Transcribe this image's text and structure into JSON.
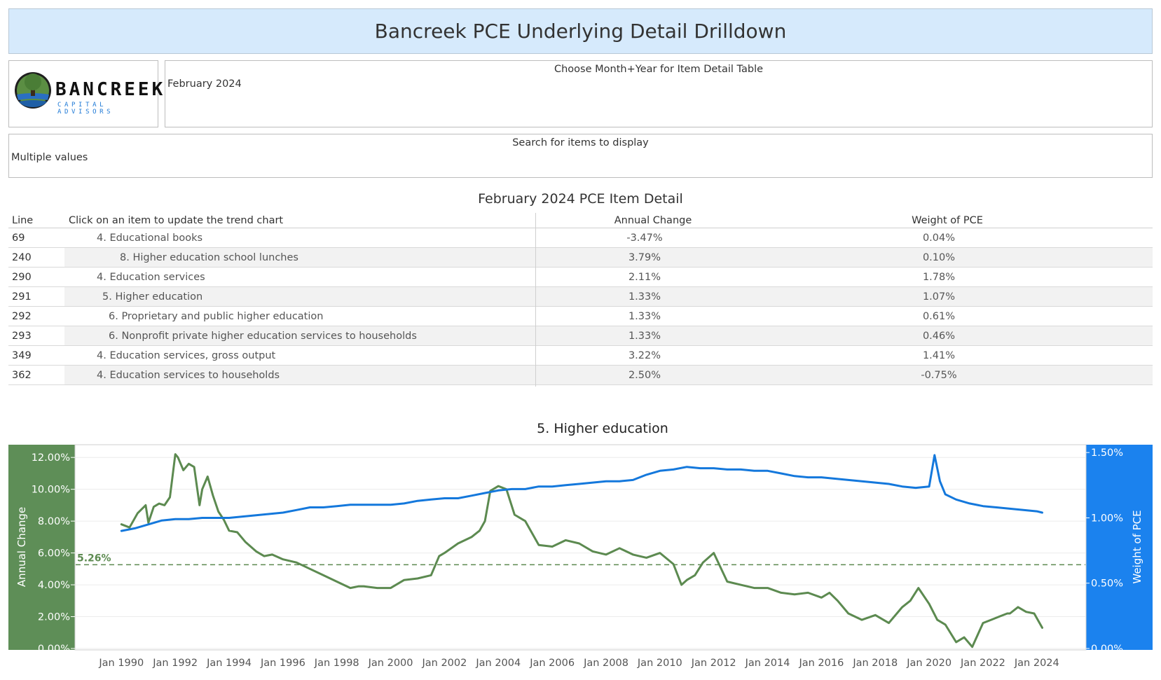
{
  "header": {
    "title": "Bancreek PCE Underlying Detail Drilldown"
  },
  "logo": {
    "name": "BANCREEK",
    "tagline": "CAPITAL ADVISORS"
  },
  "month_filter": {
    "label": "Choose Month+Year for Item Detail Table",
    "value": "February 2024"
  },
  "search_filter": {
    "label": "Search for items to display",
    "value": "Multiple values"
  },
  "table": {
    "title": "February 2024 PCE Item Detail",
    "columns": {
      "line": "Line",
      "item": "Click on an item to update the trend chart",
      "annual": "Annual Change",
      "weight": "Weight of PCE"
    },
    "rows": [
      {
        "line": "69",
        "item": "4. Educational books",
        "annual": "-3.47%",
        "weight": "0.04%",
        "level": 4
      },
      {
        "line": "240",
        "item": "8. Higher education school lunches",
        "annual": "3.79%",
        "weight": "0.10%",
        "level": 8
      },
      {
        "line": "290",
        "item": "4. Education services",
        "annual": "2.11%",
        "weight": "1.78%",
        "level": 4
      },
      {
        "line": "291",
        "item": "5. Higher education",
        "annual": "1.33%",
        "weight": "1.07%",
        "level": 5
      },
      {
        "line": "292",
        "item": "6. Proprietary and public higher education",
        "annual": "1.33%",
        "weight": "0.61%",
        "level": 6
      },
      {
        "line": "293",
        "item": "6. Nonprofit private higher education services to households",
        "annual": "1.33%",
        "weight": "0.46%",
        "level": 6
      },
      {
        "line": "349",
        "item": "4. Education services, gross output",
        "annual": "3.22%",
        "weight": "1.41%",
        "level": 4
      },
      {
        "line": "362",
        "item": "4. Education services to households",
        "annual": "2.50%",
        "weight": "-0.75%",
        "level": 4
      }
    ]
  },
  "colors": {
    "annual_change": "#5c8a50",
    "weight_of_pce": "#1478dc",
    "left_axis_bg": "#5e8e57",
    "right_axis_bg": "#1b82ee",
    "title_bar_bg": "#d6eafc"
  },
  "chart_data": {
    "type": "line",
    "title": "5. Higher education",
    "xlabel": "",
    "ylabel": "Annual Change",
    "y2label": "Weight of PCE",
    "x_ticks": [
      "Jan 1990",
      "Jan 1992",
      "Jan 1994",
      "Jan 1996",
      "Jan 1998",
      "Jan 2000",
      "Jan 2002",
      "Jan 2004",
      "Jan 2006",
      "Jan 2008",
      "Jan 2010",
      "Jan 2012",
      "Jan 2014",
      "Jan 2016",
      "Jan 2018",
      "Jan 2020",
      "Jan 2022",
      "Jan 2024"
    ],
    "y_ticks": [
      "0.00%",
      "2.00%",
      "4.00%",
      "6.00%",
      "8.00%",
      "10.00%",
      "12.00%"
    ],
    "y2_ticks": [
      "0.00%",
      "0.50%",
      "1.00%",
      "1.50%"
    ],
    "ylim": [
      0,
      12.8
    ],
    "y2lim": [
      0,
      1.56
    ],
    "xlim": [
      1988.3,
      2025.8
    ],
    "reference_line": {
      "value": 5.26,
      "label": "5.26%"
    },
    "grid": true,
    "series": [
      {
        "name": "Annual Change",
        "axis": "left",
        "x": [
          1990.0,
          1990.3,
          1990.6,
          1990.9,
          1991.0,
          1991.2,
          1991.4,
          1991.6,
          1991.8,
          1992.0,
          1992.1,
          1992.3,
          1992.5,
          1992.7,
          1992.9,
          1993.0,
          1993.2,
          1993.4,
          1993.6,
          1993.8,
          1994.0,
          1994.3,
          1994.6,
          1995.0,
          1995.3,
          1995.6,
          1996.0,
          1996.5,
          1997.0,
          1997.5,
          1998.0,
          1998.5,
          1998.8,
          1999.0,
          1999.5,
          2000.0,
          2000.5,
          2001.0,
          2001.5,
          2001.8,
          2002.0,
          2002.5,
          2003.0,
          2003.3,
          2003.5,
          2003.7,
          2004.0,
          2004.3,
          2004.6,
          2005.0,
          2005.5,
          2006.0,
          2006.5,
          2007.0,
          2007.5,
          2008.0,
          2008.5,
          2009.0,
          2009.5,
          2010.0,
          2010.5,
          2010.8,
          2011.0,
          2011.3,
          2011.6,
          2012.0,
          2012.5,
          2013.0,
          2013.5,
          2014.0,
          2014.5,
          2015.0,
          2015.5,
          2016.0,
          2016.3,
          2016.6,
          2017.0,
          2017.5,
          2018.0,
          2018.5,
          2019.0,
          2019.3,
          2019.6,
          2020.0,
          2020.3,
          2020.6,
          2021.0,
          2021.3,
          2021.6,
          2022.0,
          2022.3,
          2022.6,
          2022.9,
          2023.0,
          2023.3,
          2023.6,
          2023.9,
          2024.2
        ],
        "y": [
          7.8,
          7.6,
          8.5,
          9.0,
          7.9,
          8.9,
          9.1,
          9.0,
          9.5,
          12.2,
          12.0,
          11.2,
          11.6,
          11.4,
          9.0,
          10.0,
          10.8,
          9.6,
          8.6,
          8.1,
          7.4,
          7.3,
          6.7,
          6.1,
          5.8,
          5.9,
          5.6,
          5.4,
          5.0,
          4.6,
          4.2,
          3.8,
          3.9,
          3.9,
          3.8,
          3.8,
          4.3,
          4.4,
          4.6,
          5.8,
          6.0,
          6.6,
          7.0,
          7.4,
          8.0,
          9.9,
          10.2,
          10.0,
          8.4,
          8.0,
          6.5,
          6.4,
          6.8,
          6.6,
          6.1,
          5.9,
          6.3,
          5.9,
          5.7,
          6.0,
          5.3,
          4.0,
          4.3,
          4.6,
          5.4,
          6.0,
          4.2,
          4.0,
          3.8,
          3.8,
          3.5,
          3.4,
          3.5,
          3.2,
          3.5,
          3.0,
          2.2,
          1.8,
          2.1,
          1.6,
          2.6,
          3.0,
          3.8,
          2.8,
          1.8,
          1.5,
          0.4,
          0.7,
          0.1,
          1.6,
          1.8,
          2.0,
          2.2,
          2.2,
          2.6,
          2.3,
          2.2,
          1.3
        ]
      },
      {
        "name": "Weight of PCE",
        "axis": "right",
        "x": [
          1990.0,
          1990.5,
          1991.0,
          1991.5,
          1992.0,
          1992.5,
          1993.0,
          1993.5,
          1994.0,
          1994.5,
          1995.0,
          1995.5,
          1996.0,
          1996.5,
          1997.0,
          1997.5,
          1998.0,
          1998.5,
          1999.0,
          1999.5,
          2000.0,
          2000.5,
          2001.0,
          2001.5,
          2002.0,
          2002.5,
          2003.0,
          2003.5,
          2004.0,
          2004.5,
          2005.0,
          2005.5,
          2006.0,
          2006.5,
          2007.0,
          2007.5,
          2008.0,
          2008.5,
          2009.0,
          2009.5,
          2010.0,
          2010.5,
          2011.0,
          2011.5,
          2012.0,
          2012.5,
          2013.0,
          2013.5,
          2014.0,
          2014.5,
          2015.0,
          2015.5,
          2016.0,
          2016.5,
          2017.0,
          2017.5,
          2018.0,
          2018.5,
          2019.0,
          2019.5,
          2020.0,
          2020.2,
          2020.4,
          2020.6,
          2021.0,
          2021.5,
          2022.0,
          2022.5,
          2023.0,
          2023.5,
          2024.0,
          2024.2
        ],
        "y": [
          0.9,
          0.92,
          0.95,
          0.98,
          0.99,
          0.99,
          1.0,
          1.0,
          1.0,
          1.01,
          1.02,
          1.03,
          1.04,
          1.06,
          1.08,
          1.08,
          1.09,
          1.1,
          1.1,
          1.1,
          1.1,
          1.11,
          1.13,
          1.14,
          1.15,
          1.15,
          1.17,
          1.19,
          1.21,
          1.22,
          1.22,
          1.24,
          1.24,
          1.25,
          1.26,
          1.27,
          1.28,
          1.28,
          1.29,
          1.33,
          1.36,
          1.37,
          1.39,
          1.38,
          1.38,
          1.37,
          1.37,
          1.36,
          1.36,
          1.34,
          1.32,
          1.31,
          1.31,
          1.3,
          1.29,
          1.28,
          1.27,
          1.26,
          1.24,
          1.23,
          1.24,
          1.48,
          1.28,
          1.18,
          1.14,
          1.11,
          1.09,
          1.08,
          1.07,
          1.06,
          1.05,
          1.04
        ]
      }
    ]
  }
}
